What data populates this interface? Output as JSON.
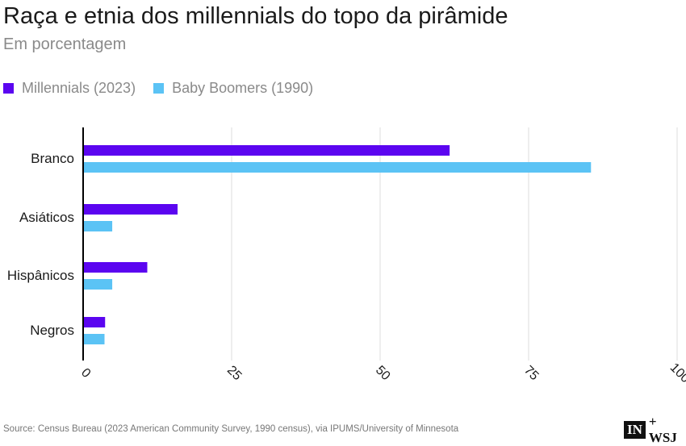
{
  "title": "Raça e etnia dos millennials do topo da pirâmide",
  "subtitle": "Em porcentagem",
  "source": "Source: Census Bureau (2023 American Community Survey, 1990 census), via IPUMS/University of Minnesota",
  "logo": {
    "box": "IN",
    "text": "+ WSJ"
  },
  "colors": {
    "millennials": "#5b05f0",
    "boomers": "#5bc3f5",
    "grid": "#dcdcdc",
    "axis": "#000000"
  },
  "chart_data": {
    "type": "bar",
    "orientation": "horizontal",
    "categories": [
      "Branco",
      "Asiáticos",
      "Hispânicos",
      "Negros"
    ],
    "series": [
      {
        "name": "Millennials (2023)",
        "values": [
          61.7,
          15.9,
          10.8,
          3.7
        ]
      },
      {
        "name": "Baby Boomers (1990)",
        "values": [
          85.5,
          4.9,
          4.9,
          3.6
        ]
      }
    ],
    "xlim": [
      0,
      100
    ],
    "xticks": [
      "0",
      "25",
      "50",
      "75",
      "100"
    ],
    "grid": true,
    "legend": "top-left"
  }
}
